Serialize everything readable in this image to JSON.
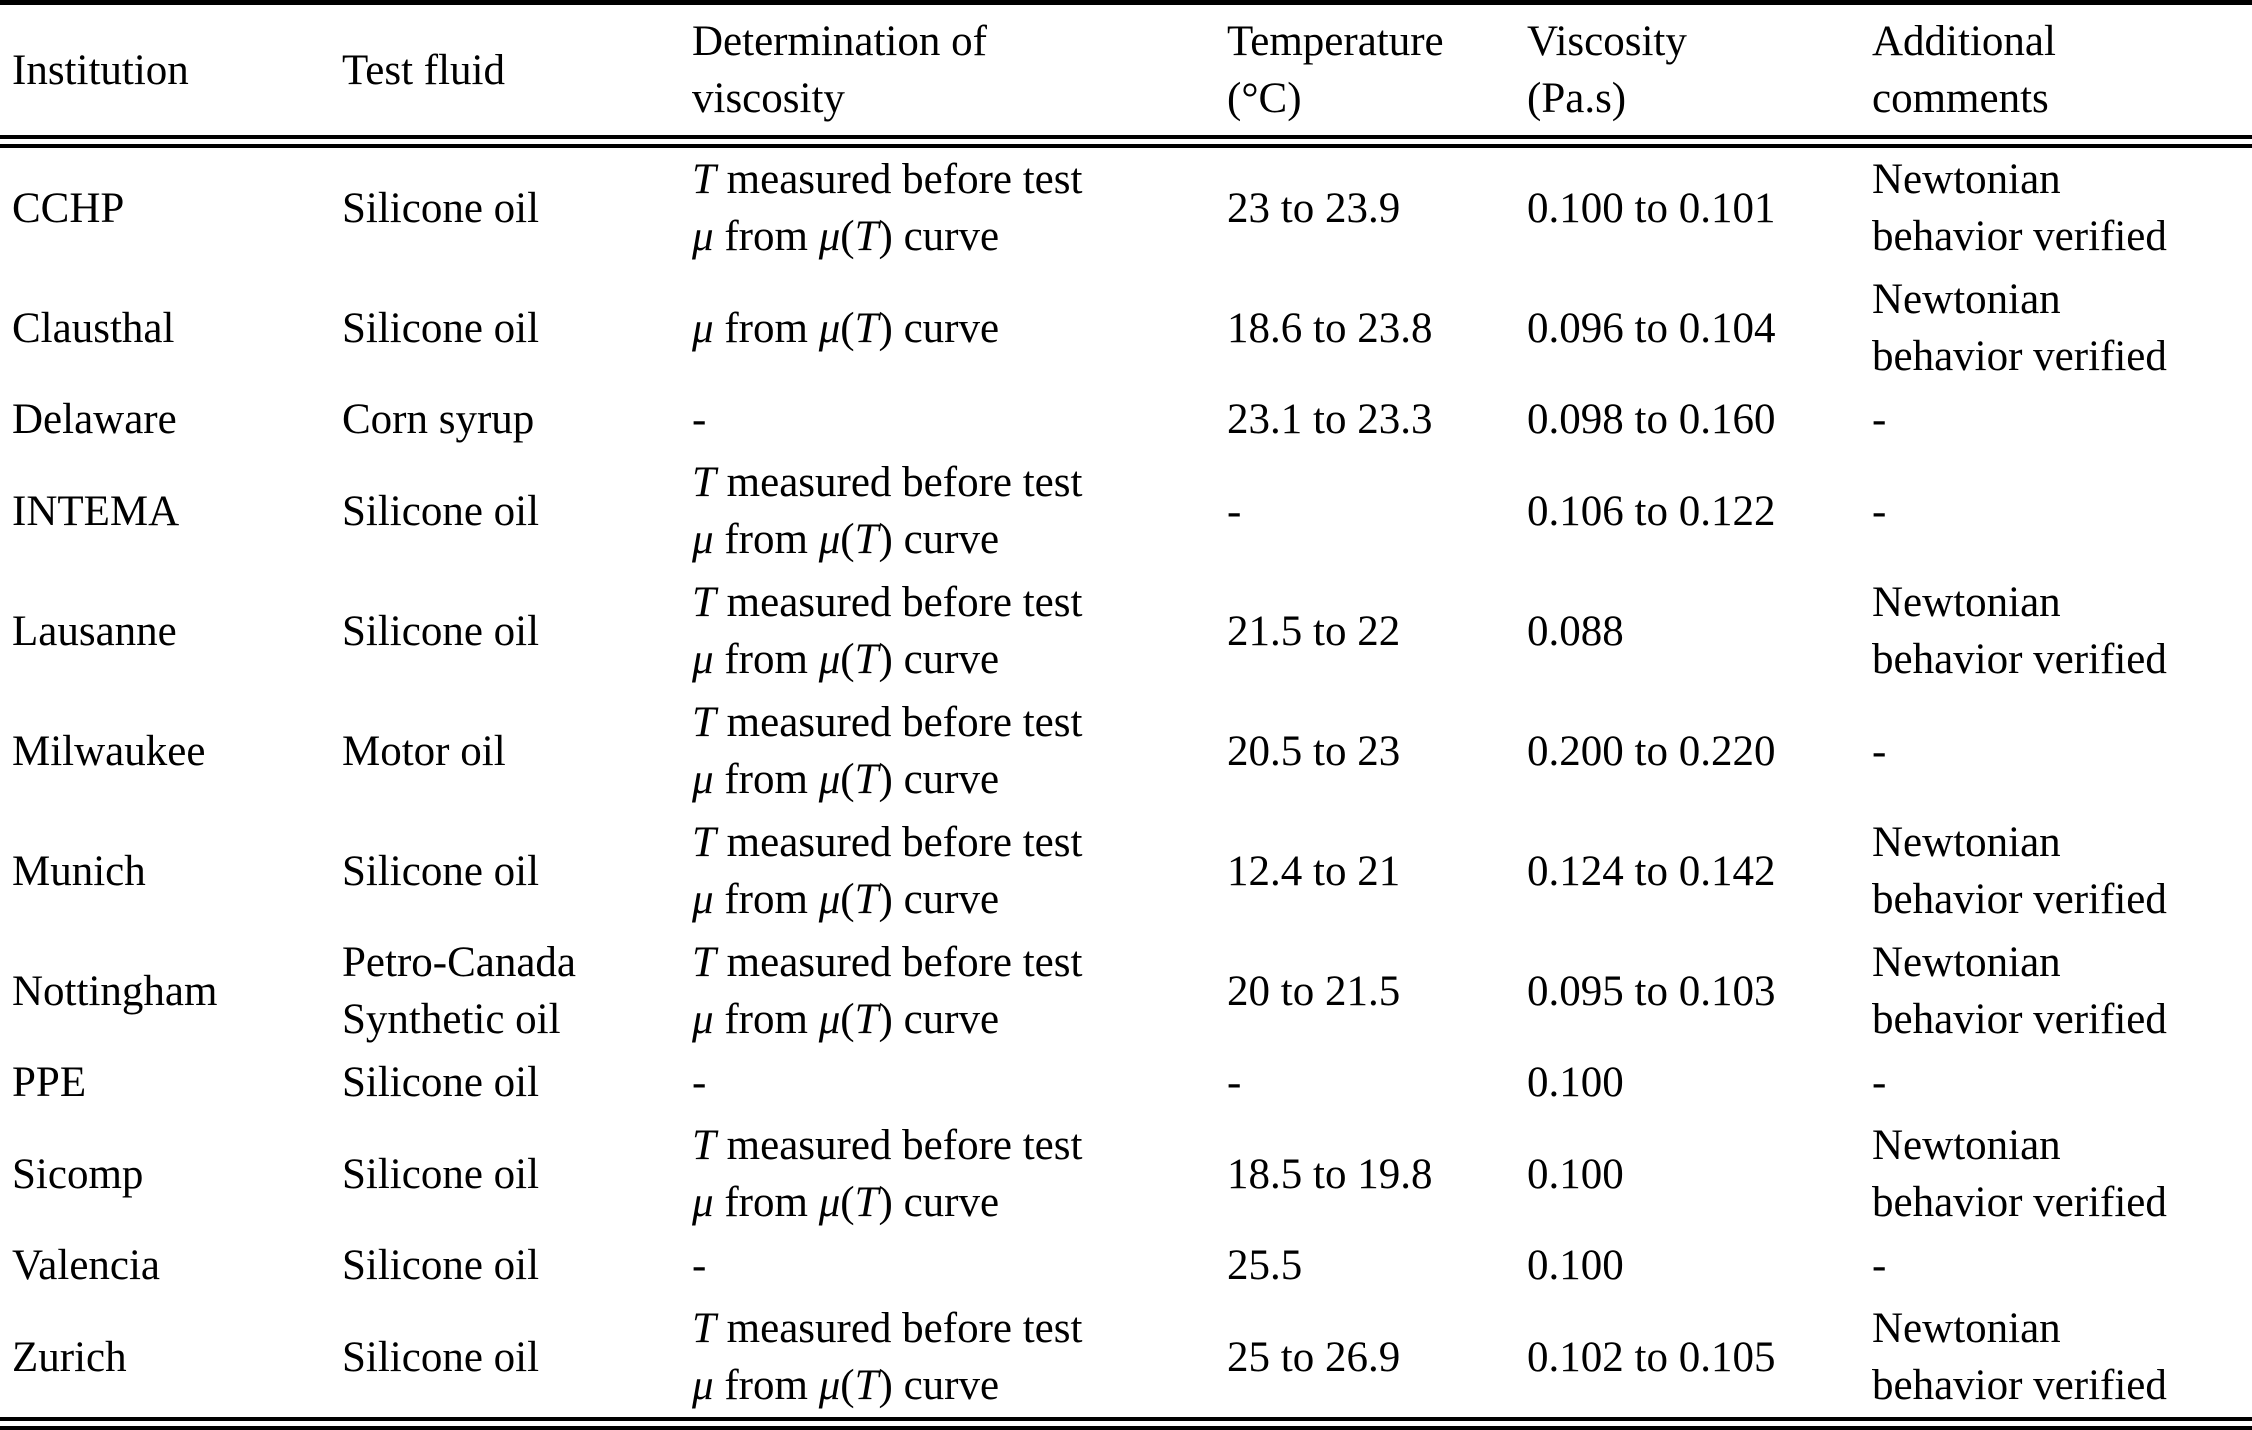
{
  "table": {
    "headers": [
      {
        "id": "institution",
        "lines": [
          "Institution"
        ]
      },
      {
        "id": "test-fluid",
        "lines": [
          "Test fluid"
        ]
      },
      {
        "id": "determination",
        "lines": [
          "Determination of",
          "viscosity"
        ]
      },
      {
        "id": "temperature",
        "lines": [
          "Temperature",
          "(°C)"
        ]
      },
      {
        "id": "viscosity",
        "lines": [
          "Viscosity",
          "(Pa.s)"
        ]
      },
      {
        "id": "comments",
        "lines": [
          "Additional",
          "comments"
        ]
      }
    ],
    "rows": [
      {
        "institution": "CCHP",
        "test_fluid": "Silicone oil",
        "determination": [
          "T measured before test",
          "μ from μ(T) curve"
        ],
        "temperature": "23 to 23.9",
        "viscosity": "0.100 to 0.101",
        "comments": [
          "Newtonian",
          "behavior verified"
        ]
      },
      {
        "institution": "Clausthal",
        "test_fluid": "Silicone oil",
        "determination": [
          "μ from μ(T) curve"
        ],
        "temperature": "18.6 to 23.8",
        "viscosity": "0.096 to 0.104",
        "comments": [
          "Newtonian",
          "behavior verified"
        ]
      },
      {
        "institution": "Delaware",
        "test_fluid": "Corn syrup",
        "determination": [
          "-"
        ],
        "temperature": "23.1 to 23.3",
        "viscosity": "0.098 to 0.160",
        "comments": "-"
      },
      {
        "institution": "INTEMA",
        "test_fluid": "Silicone oil",
        "determination": [
          "T measured before test",
          "μ from μ(T) curve"
        ],
        "temperature": "-",
        "viscosity": "0.106 to 0.122",
        "comments": "-"
      },
      {
        "institution": "Lausanne",
        "test_fluid": "Silicone oil",
        "determination": [
          "T measured before test",
          "μ from μ(T) curve"
        ],
        "temperature": "21.5 to 22",
        "viscosity": "0.088",
        "comments": [
          "Newtonian",
          "behavior verified"
        ]
      },
      {
        "institution": "Milwaukee",
        "test_fluid": "Motor oil",
        "determination": [
          "T measured before test",
          "μ from μ(T) curve"
        ],
        "temperature": "20.5 to 23",
        "viscosity": "0.200 to 0.220",
        "comments": "-"
      },
      {
        "institution": "Munich",
        "test_fluid": "Silicone oil",
        "determination": [
          "T measured before test",
          "μ from μ(T) curve"
        ],
        "temperature": "12.4 to 21",
        "viscosity": "0.124 to 0.142",
        "comments": [
          "Newtonian",
          "behavior verified"
        ]
      },
      {
        "institution": "Nottingham",
        "test_fluid": [
          "Petro-Canada",
          "Synthetic oil"
        ],
        "determination": [
          "T measured before test",
          "μ from μ(T) curve"
        ],
        "temperature": "20 to 21.5",
        "viscosity": "0.095 to 0.103",
        "comments": [
          "Newtonian",
          "behavior verified"
        ]
      },
      {
        "institution": "PPE",
        "test_fluid": "Silicone oil",
        "determination": [
          "-"
        ],
        "temperature": "-",
        "viscosity": "0.100",
        "comments": "-"
      },
      {
        "institution": "Sicomp",
        "test_fluid": "Silicone oil",
        "determination": [
          "T measured before test",
          "μ from μ(T) curve"
        ],
        "temperature": "18.5 to 19.8",
        "viscosity": "0.100",
        "comments": [
          "Newtonian",
          "behavior verified"
        ]
      },
      {
        "institution": "Valencia",
        "test_fluid": "Silicone oil",
        "determination": [
          "-"
        ],
        "temperature": "25.5",
        "viscosity": "0.100",
        "comments": "-"
      },
      {
        "institution": "Zurich",
        "test_fluid": "Silicone oil",
        "determination": [
          "T measured before test",
          "μ from μ(T) curve"
        ],
        "temperature": "25 to 26.9",
        "viscosity": "0.102 to 0.105",
        "comments": [
          "Newtonian",
          "behavior verified"
        ]
      }
    ]
  }
}
